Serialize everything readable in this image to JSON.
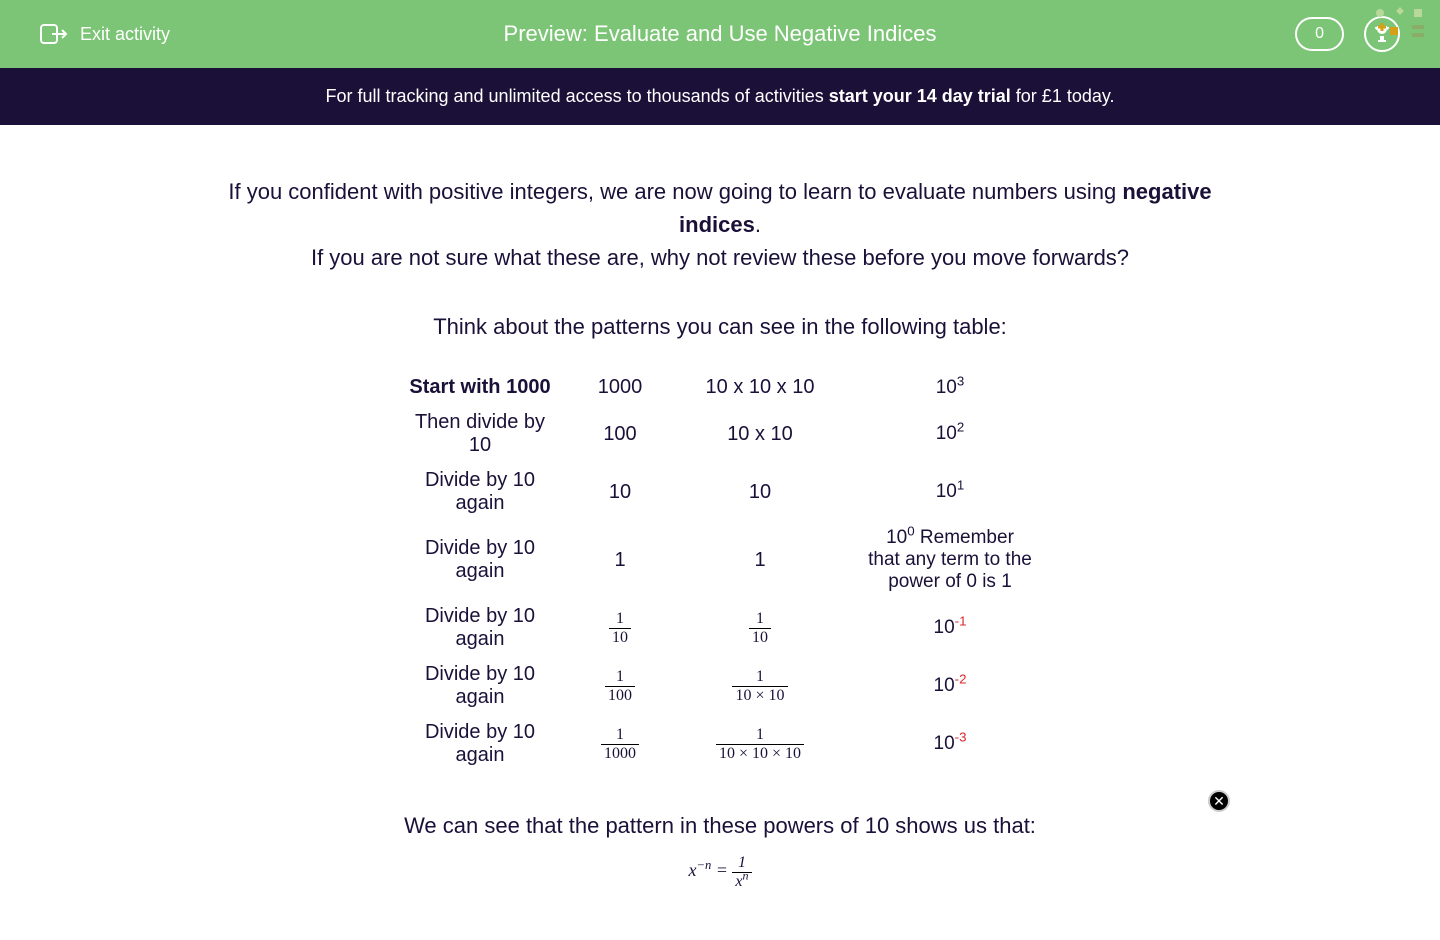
{
  "header": {
    "exit_label": "Exit activity",
    "title": "Preview: Evaluate and Use Negative Indices",
    "score": "0"
  },
  "banner": {
    "pre": "For full tracking and unlimited access to thousands of activities ",
    "bold": "start your 14 day trial",
    "post": " for £1 today."
  },
  "intro": {
    "line1_pre": "If you confident with positive integers, we are now going to learn to evaluate numbers using ",
    "line1_bold": "negative indices",
    "line1_post": ".",
    "line2": "If you are not sure what these are, why not review these before you move forwards?"
  },
  "subhead": "Think about the patterns you can see in the following table:",
  "table": {
    "rows": [
      {
        "label": "Start with 1000",
        "bold": true,
        "value": "1000",
        "expanded": "10 x 10 x 10",
        "power_base": "10",
        "power_exp": "3",
        "neg": false
      },
      {
        "label": "Then divide by 10",
        "bold": false,
        "value": "100",
        "expanded": "10 x 10",
        "power_base": "10",
        "power_exp": "2",
        "neg": false
      },
      {
        "label": "Divide by 10 again",
        "bold": false,
        "value": "10",
        "expanded": "10",
        "power_base": "10",
        "power_exp": "1",
        "neg": false
      },
      {
        "label": "Divide by 10 again",
        "bold": false,
        "value": "1",
        "expanded": "1",
        "power_base": "10",
        "power_exp": "0",
        "neg": false,
        "note": "  Remember that any term to the power of 0 is 1"
      },
      {
        "label": "Divide by 10 again",
        "bold": false,
        "value_frac": {
          "num": "1",
          "den": "10"
        },
        "expanded_frac": {
          "num": "1",
          "den": "10"
        },
        "power_base": "10",
        "power_exp": "-1",
        "neg": true
      },
      {
        "label": "Divide by 10 again",
        "bold": false,
        "value_frac": {
          "num": "1",
          "den": "100"
        },
        "expanded_frac": {
          "num": "1",
          "den": "10  × 10"
        },
        "power_base": "10",
        "power_exp": "-2",
        "neg": true
      },
      {
        "label": "Divide by 10 again",
        "bold": false,
        "value_frac": {
          "num": "1",
          "den": "1000"
        },
        "expanded_frac": {
          "num": "1",
          "den": "10 × 10 × 10"
        },
        "power_base": "10",
        "power_exp": "-3",
        "neg": true
      }
    ]
  },
  "conclusion": "We can see that the pattern in these powers of 10 shows us that:",
  "colors": {
    "header_bg": "#7cc576",
    "banner_bg": "#1a1038",
    "text": "#1a1038",
    "neg": "#d9262a"
  }
}
